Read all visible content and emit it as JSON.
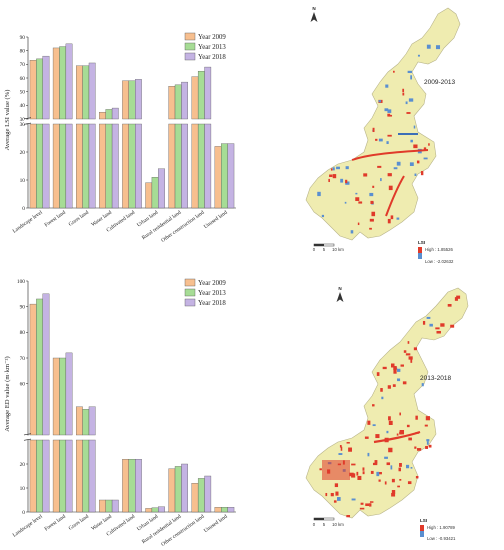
{
  "chart_data": [
    {
      "type": "bar",
      "ylabel": "Average LSI value (%)",
      "categories": [
        "Landscape level",
        "Forest land",
        "Grass land",
        "Water land",
        "Cultivated land",
        "Urban land",
        "Rural residential land",
        "Other construction land",
        "Unused land"
      ],
      "series": [
        {
          "name": "Year 2009",
          "color": "#f7bf8f",
          "values": [
            73,
            82,
            69,
            35,
            58,
            9,
            54,
            61,
            22
          ]
        },
        {
          "name": "Year 2013",
          "color": "#a6dc95",
          "values": [
            74,
            83,
            69,
            37,
            58,
            11,
            55,
            65,
            23
          ]
        },
        {
          "name": "Year 2018",
          "color": "#c4b3e3",
          "values": [
            76,
            85,
            71,
            38,
            59,
            14,
            57,
            68,
            23
          ]
        }
      ],
      "broken_axis": {
        "upper": [
          30,
          90
        ],
        "lower": [
          0,
          30
        ]
      },
      "ticks_upper": [
        30,
        40,
        50,
        60,
        70,
        80,
        90
      ],
      "ticks_lower": [
        0,
        10,
        20,
        30
      ],
      "grid": false,
      "legend": "top-right"
    },
    {
      "type": "bar",
      "ylabel": "Average ED value (m·km⁻²)",
      "categories": [
        "Landscape level",
        "Forest land",
        "Grass land",
        "Water land",
        "Cultivated land",
        "Urban land",
        "Rural residential land",
        "Other construction land",
        "Unused land"
      ],
      "series": [
        {
          "name": "Year 2009",
          "color": "#f7bf8f",
          "values": [
            91,
            70,
            51,
            5,
            22,
            1.5,
            18,
            12,
            2
          ]
        },
        {
          "name": "Year 2013",
          "color": "#a6dc95",
          "values": [
            93,
            70,
            50,
            5,
            22,
            1.8,
            19,
            14,
            2
          ]
        },
        {
          "name": "Year 2018",
          "color": "#c4b3e3",
          "values": [
            95,
            72,
            51,
            5,
            22,
            2.2,
            20,
            15,
            2
          ]
        }
      ],
      "broken_axis": {
        "upper": [
          40,
          100
        ],
        "lower": [
          0,
          30
        ]
      },
      "ticks_upper": [
        60,
        70,
        80,
        90,
        100
      ],
      "ticks_lower": [
        0,
        10,
        20
      ],
      "grid": false,
      "legend": "top-right"
    }
  ],
  "maps": [
    {
      "period": "2009-2013",
      "north": "N",
      "legend_title": "LSI",
      "high": "High : 1.85526",
      "low": "Low : -2.02632",
      "scale": [
        "0",
        "5",
        "10 km"
      ]
    },
    {
      "period": "2013-2018",
      "north": "N",
      "legend_title": "LSI",
      "high": "High : 1.90789",
      "low": "Low : -0.93421",
      "scale": [
        "0",
        "5",
        "10 km"
      ]
    }
  ]
}
